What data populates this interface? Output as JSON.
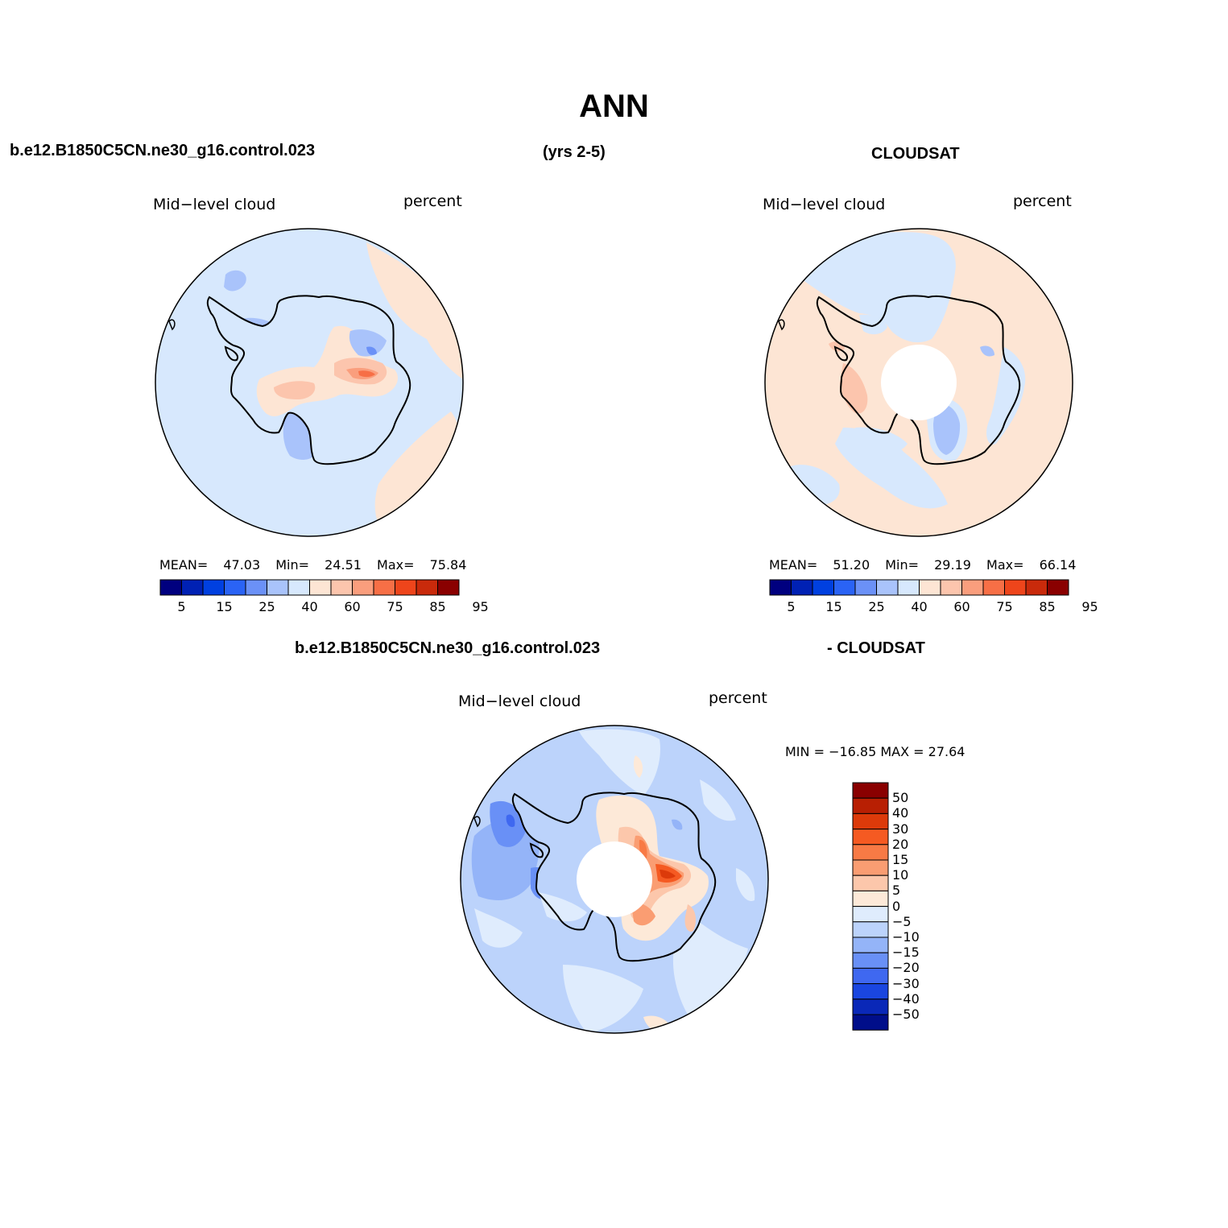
{
  "title": "ANN",
  "header": {
    "case_name": "b.e12.B1850C5CN.ne30_g16.control.023",
    "years": "(yrs 2-5)",
    "obs_name": "CLOUDSAT",
    "diff_case": "b.e12.B1850C5CN.ne30_g16.control.023",
    "diff_obs": "- CLOUDSAT"
  },
  "panels": {
    "model": {
      "variable": "Mid−level cloud",
      "units": "percent",
      "mean_label": "MEAN=",
      "mean": "47.03",
      "min_label": "Min=",
      "min": "24.51",
      "max_label": "Max=",
      "max": "75.84"
    },
    "obs": {
      "variable": "Mid−level cloud",
      "units": "percent",
      "mean_label": "MEAN=",
      "mean": "51.20",
      "min_label": "Min=",
      "min": "29.19",
      "max_label": "Max=",
      "max": "66.14"
    },
    "diff": {
      "variable": "Mid−level cloud",
      "units": "percent",
      "minmax": "MIN = −16.85 MAX =  27.64"
    }
  },
  "colorbar_abs": {
    "colors": [
      "#00007f",
      "#0021b4",
      "#0040e0",
      "#2a63f5",
      "#6b91f7",
      "#a9c3fb",
      "#d7e8fd",
      "#fde5d4",
      "#fcc5ad",
      "#fa9e7d",
      "#f76f46",
      "#ee451b",
      "#c92a0b",
      "#8a0000"
    ],
    "tick_labels": [
      "5",
      "15",
      "25",
      "40",
      "60",
      "75",
      "85",
      "95"
    ]
  },
  "colorbar_diff": {
    "colors_top_to_bottom": [
      "#8a0000",
      "#b81f03",
      "#dc3a0a",
      "#f55a22",
      "#f87a45",
      "#fa9d72",
      "#fcc7ab",
      "#fde9d8",
      "#dfecfd",
      "#bcd3fb",
      "#94b4f8",
      "#6990f6",
      "#3f68f0",
      "#1a46e0",
      "#0a28b8",
      "#000e8a"
    ],
    "tick_labels": [
      "50",
      "40",
      "30",
      "20",
      "15",
      "10",
      "5",
      "0",
      "−5",
      "−10",
      "−15",
      "−20",
      "−30",
      "−40",
      "−50"
    ]
  }
}
